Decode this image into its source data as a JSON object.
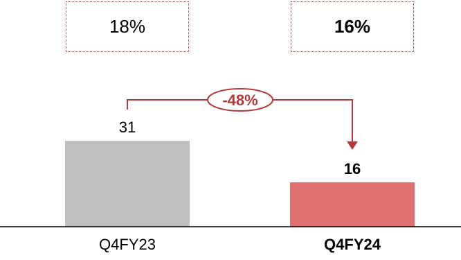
{
  "chart_data": {
    "type": "bar",
    "categories": [
      "Q4FY23",
      "Q4FY24"
    ],
    "values": [
      31,
      16
    ],
    "value_labels": [
      "31",
      "16"
    ],
    "category_bold": [
      false,
      true
    ],
    "ratio_labels": [
      "18%",
      "16%"
    ],
    "ratio_bold": [
      false,
      true
    ],
    "change_label": "-48%",
    "ylim": [
      0,
      40
    ],
    "grid": false,
    "colors": {
      "bars": [
        "#c0c0c0",
        "#e07070"
      ],
      "accent": "#b23a3a",
      "axis": "#000000"
    }
  }
}
